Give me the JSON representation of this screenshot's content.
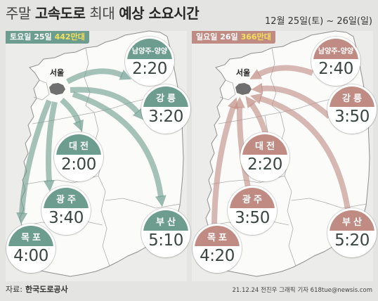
{
  "title": {
    "parts": [
      "주말",
      "고속도로",
      "최대",
      "예상 소요시간"
    ]
  },
  "date_range": "12월 25일(토) ~ 26일(일)",
  "colors": {
    "saturday": "#6d9d8e",
    "sunday": "#c08b82",
    "volume_highlight": "#f4e15a",
    "background": "#e4e4e2"
  },
  "panels": [
    {
      "day": "토요일 25일",
      "traffic_volume": "442만대",
      "origin": "서울",
      "routes": [
        {
          "destination": "남양주-양양",
          "time": "2:20"
        },
        {
          "destination": "강릉",
          "time": "3:20"
        },
        {
          "destination": "대전",
          "time": "2:00"
        },
        {
          "destination": "광주",
          "time": "3:40"
        },
        {
          "destination": "부산",
          "time": "5:10"
        },
        {
          "destination": "목포",
          "time": "4:00"
        }
      ]
    },
    {
      "day": "일요일 26일",
      "traffic_volume": "366만대",
      "origin": "서울",
      "routes": [
        {
          "destination": "남양주-양양",
          "time": "2:40"
        },
        {
          "destination": "강릉",
          "time": "3:50"
        },
        {
          "destination": "대전",
          "time": "2:20"
        },
        {
          "destination": "광주",
          "time": "3:50"
        },
        {
          "destination": "부산",
          "time": "5:20"
        },
        {
          "destination": "목포",
          "time": "4:20"
        }
      ]
    }
  ],
  "footer": {
    "source_label": "자료:",
    "source": "한국도로공사",
    "credit": "21.12.24 전진우 그래픽 기자 618tue@newsis.com"
  }
}
